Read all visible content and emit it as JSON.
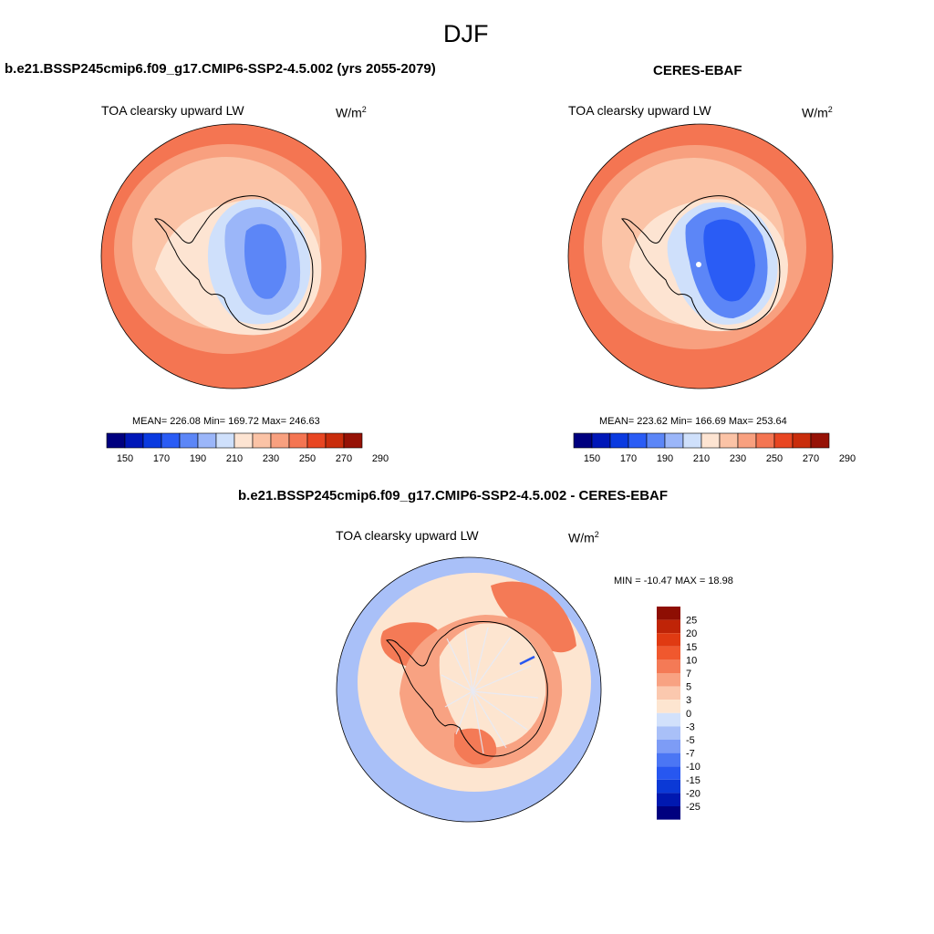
{
  "page": {
    "season": "DJF"
  },
  "colors": {
    "abs_palette": [
      "#00007f",
      "#0017b8",
      "#0a3ae0",
      "#2a5cf5",
      "#5c86f7",
      "#9bb6f9",
      "#cfe0fb",
      "#fde4d2",
      "#fbc3a6",
      "#f8a07f",
      "#f47552",
      "#e84622",
      "#c92d0c",
      "#961206"
    ],
    "diff_palette": [
      "#00007f",
      "#0018b0",
      "#0b39d6",
      "#2757f0",
      "#4b76f4",
      "#7d9cf6",
      "#a9c0f8",
      "#d2e1fb",
      "#fde5d0",
      "#fbc8ae",
      "#f8a282",
      "#f47a56",
      "#f0582e",
      "#e03a12",
      "#bf2407",
      "#8e0e03"
    ],
    "coastline": "#000000",
    "map_outline": "#000000"
  },
  "chart_data": [
    {
      "type": "heatmap",
      "projection": "south-polar-stereographic",
      "title": "b.e21.BSSP245cmip6.f09_g17.CMIP6-SSP2-4.5.002 (yrs 2055-2079)",
      "variable": "TOA clearsky upward LW",
      "units_base": "W/m",
      "units_exp": "2",
      "stats_text": "MEAN= 226.08  Min= 169.72  Max= 246.63",
      "mean": 226.08,
      "min": 169.72,
      "max": 246.63,
      "colorbar_levels": [
        150,
        160,
        170,
        180,
        190,
        200,
        210,
        220,
        230,
        240,
        250,
        260,
        270,
        280,
        290
      ],
      "colorbar_ticks": [
        "150",
        "170",
        "190",
        "210",
        "230",
        "250",
        "270",
        "290"
      ],
      "field_regions": {
        "ocean_outer": 242,
        "ocean_mid": 235,
        "ocean_inner": 228,
        "coast_margin": 218,
        "ice_edge": 205,
        "plateau": 192,
        "plateau_core": 182
      }
    },
    {
      "type": "heatmap",
      "projection": "south-polar-stereographic",
      "title": "CERES-EBAF",
      "variable": "TOA clearsky upward LW",
      "units_base": "W/m",
      "units_exp": "2",
      "stats_text": "MEAN= 223.62  Min= 166.69  Max= 253.64",
      "mean": 223.62,
      "min": 166.69,
      "max": 253.64,
      "colorbar_levels": [
        150,
        160,
        170,
        180,
        190,
        200,
        210,
        220,
        230,
        240,
        250,
        260,
        270,
        280,
        290
      ],
      "colorbar_ticks": [
        "150",
        "170",
        "190",
        "210",
        "230",
        "250",
        "270",
        "290"
      ],
      "field_regions": {
        "ocean_outer": 245,
        "ocean_mid": 236,
        "ocean_inner": 226,
        "coast_margin": 212,
        "ice_edge": 200,
        "plateau": 188,
        "plateau_core": 176
      }
    },
    {
      "type": "heatmap",
      "projection": "south-polar-stereographic",
      "title": "b.e21.BSSP245cmip6.f09_g17.CMIP6-SSP2-4.5.002 - CERES-EBAF",
      "variable": "TOA clearsky upward LW",
      "units_base": "W/m",
      "units_exp": "2",
      "stats_text": "MIN = -10.47 MAX =  18.98",
      "min": -10.47,
      "max": 18.98,
      "colorbar_labels": [
        "25",
        "20",
        "15",
        "10",
        "7",
        "5",
        "3",
        "0",
        "-3",
        "-5",
        "-7",
        "-10",
        "-15",
        "-20",
        "-25"
      ],
      "field_regions": {
        "ocean_far": -4,
        "ocean_near": 2,
        "east_ocean_patch": 8,
        "peninsula_anom": 9,
        "coast_ring": 6,
        "continent_interior": 1,
        "ross_sea": 7
      }
    }
  ]
}
